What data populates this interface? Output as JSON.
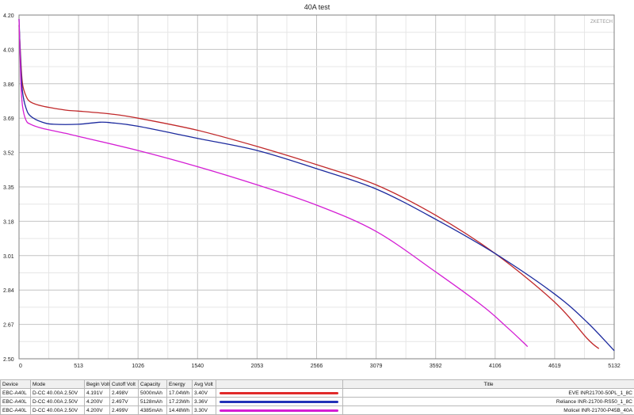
{
  "chart_data": {
    "type": "line",
    "title": "40A test",
    "watermark": "ZKETECH",
    "xlabel": "",
    "ylabel": "",
    "xlim": [
      0,
      5132
    ],
    "ylim": [
      2.5,
      4.2
    ],
    "x_ticks": [
      "0",
      "513",
      "1026",
      "1540",
      "2053",
      "2566",
      "3079",
      "3592",
      "4106",
      "4619",
      "5132"
    ],
    "y_ticks": [
      "4.20",
      "4.03",
      "3.86",
      "3.69",
      "3.52",
      "3.35",
      "3.18",
      "3.01",
      "2.84",
      "2.67",
      "2.50"
    ],
    "grid": true,
    "series": [
      {
        "name": "EVE INR21700-50PL_1_8C",
        "color": "#c0282a",
        "x": [
          0,
          15,
          30,
          60,
          100,
          200,
          400,
          513,
          800,
          1026,
          1540,
          2053,
          2566,
          3079,
          3592,
          4106,
          4619,
          4900,
          5000
        ],
        "y": [
          4.15,
          3.98,
          3.86,
          3.8,
          3.77,
          3.75,
          3.73,
          3.725,
          3.71,
          3.69,
          3.63,
          3.55,
          3.46,
          3.36,
          3.21,
          3.02,
          2.78,
          2.6,
          2.55
        ]
      },
      {
        "name": "Reliance INR21700-RS50_1_8C",
        "color": "#1c2a9e",
        "x": [
          0,
          15,
          30,
          60,
          100,
          200,
          300,
          513,
          700,
          800,
          1026,
          1540,
          2053,
          2566,
          3079,
          3592,
          4106,
          4619,
          4900,
          5132
        ],
        "y": [
          4.18,
          3.95,
          3.82,
          3.74,
          3.7,
          3.67,
          3.66,
          3.66,
          3.67,
          3.667,
          3.65,
          3.59,
          3.53,
          3.44,
          3.34,
          3.19,
          3.02,
          2.82,
          2.68,
          2.54
        ]
      },
      {
        "name": "Molicel INR-21700-P45B_40A",
        "color": "#d41ed4",
        "x": [
          0,
          15,
          30,
          60,
          100,
          200,
          400,
          513,
          1026,
          1540,
          2053,
          2566,
          3079,
          3592,
          4000,
          4200,
          4350,
          4385
        ],
        "y": [
          4.18,
          3.88,
          3.75,
          3.68,
          3.66,
          3.64,
          3.615,
          3.6,
          3.53,
          3.45,
          3.36,
          3.26,
          3.13,
          2.93,
          2.76,
          2.66,
          2.58,
          2.56
        ]
      }
    ]
  },
  "table": {
    "headers": [
      "Device",
      "Mode",
      "Begin Volt",
      "Cutoff Volt",
      "Capacity",
      "Energy",
      "Avg Volt",
      "",
      "Title"
    ],
    "rows": [
      {
        "device": "EBC-A40L",
        "mode": "D-CC 40.00A 2.50V",
        "begin": "4.191V",
        "cutoff": "2.498V",
        "capacity": "5000mAh",
        "energy": "17.04Wh",
        "avg": "3.40V",
        "color": "#e02a2a",
        "title": "EVE INR21700-50PL_1_8C"
      },
      {
        "device": "EBC-A40L",
        "mode": "D-CC 40.00A 2.50V",
        "begin": "4.200V",
        "cutoff": "2.497V",
        "capacity": "5128mAh",
        "energy": "17.23Wh",
        "avg": "3.36V",
        "color": "#2232b8",
        "title": "Reliance INR-21700-RS50_1_8C"
      },
      {
        "device": "EBC-A40L",
        "mode": "D-CC 40.00A 2.50V",
        "begin": "4.200V",
        "cutoff": "2.499V",
        "capacity": "4385mAh",
        "energy": "14.48Wh",
        "avg": "3.30V",
        "color": "#d41ed4",
        "title": "Molicel INR-21700-P45B_40A"
      }
    ]
  }
}
